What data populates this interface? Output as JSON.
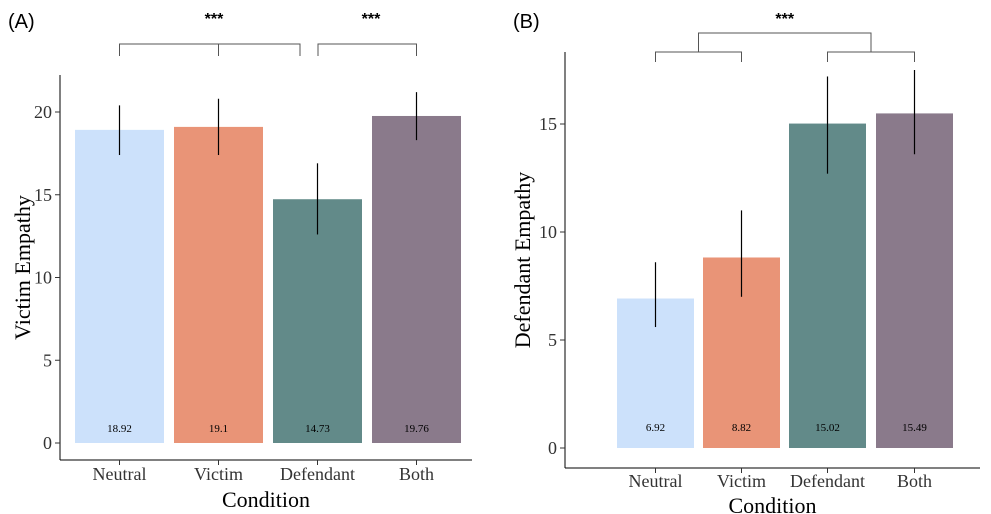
{
  "chart_data": [
    {
      "type": "bar",
      "panel_label": "(A)",
      "categories": [
        "Neutral",
        "Victim",
        "Defendant",
        "Both"
      ],
      "values": [
        18.92,
        19.1,
        14.73,
        19.76
      ],
      "value_labels": [
        "18.92",
        "19.1",
        "14.73",
        "19.76"
      ],
      "error_low": [
        17.4,
        17.4,
        12.6,
        18.3
      ],
      "error_high": [
        20.4,
        20.8,
        16.9,
        21.2
      ],
      "colors": [
        "#cce1fb",
        "#e99477",
        "#628a89",
        "#8a7a8b"
      ],
      "xlabel": "Condition",
      "ylabel": "Victim Empathy",
      "ylim": [
        0,
        22
      ],
      "yticks": [
        0,
        5,
        10,
        15,
        20
      ],
      "significance": [
        {
          "from": [
            0,
            1
          ],
          "to": [
            2,
            2
          ],
          "label": "***"
        },
        {
          "from": [
            2,
            2
          ],
          "to": [
            3,
            3
          ],
          "label": "***"
        }
      ]
    },
    {
      "type": "bar",
      "panel_label": "(B)",
      "categories": [
        "Neutral",
        "Victim",
        "Defendant",
        "Both"
      ],
      "values": [
        6.92,
        8.82,
        15.02,
        15.49
      ],
      "value_labels": [
        "6.92",
        "8.82",
        "15.02",
        "15.49"
      ],
      "error_low": [
        5.6,
        7.0,
        12.7,
        13.6
      ],
      "error_high": [
        8.6,
        11.0,
        17.2,
        17.5
      ],
      "colors": [
        "#cce1fb",
        "#e99477",
        "#628a89",
        "#8a7a8b"
      ],
      "xlabel": "Condition",
      "ylabel": "Defendant Empathy",
      "ylim": [
        0,
        18
      ],
      "yticks": [
        0,
        5,
        10,
        15
      ],
      "significance": [
        {
          "from": [
            0,
            1
          ],
          "to": [
            2,
            3
          ],
          "label": "***"
        }
      ]
    }
  ]
}
